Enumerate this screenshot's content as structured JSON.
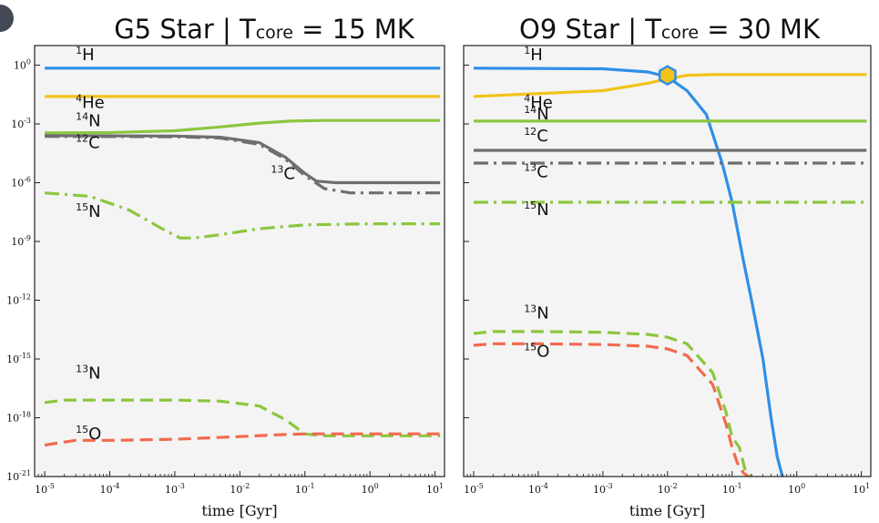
{
  "chart_data": [
    {
      "type": "line",
      "title": {
        "prefix": "G5 Star | T",
        "sub": "core",
        "suffix": " = 15 MK"
      },
      "xlabel": "time [Gyr]",
      "ylabel": "",
      "xscale": "log",
      "yscale": "log",
      "xlim": [
        7e-06,
        14
      ],
      "ylim": [
        1e-21,
        10
      ],
      "xticks": [
        "-5",
        "-4",
        "-3",
        "-2",
        "-1",
        "0",
        "1"
      ],
      "yticks": [
        "0",
        "-3",
        "-6",
        "-9",
        "-12",
        "-15",
        "-18",
        "-21"
      ],
      "grid": false,
      "legend": "none",
      "series": [
        {
          "name": "1H",
          "color": "#2f8ee8",
          "dash": "solid",
          "x": [
            1e-05,
            0.001,
            0.1,
            12
          ],
          "y": [
            0.7,
            0.7,
            0.7,
            0.7
          ]
        },
        {
          "name": "4He",
          "color": "#f2c31a",
          "dash": "solid",
          "x": [
            1e-05,
            0.001,
            0.1,
            12
          ],
          "y": [
            0.025,
            0.025,
            0.025,
            0.025
          ]
        },
        {
          "name": "14N",
          "color": "#8cc63f",
          "dash": "solid",
          "x": [
            1e-05,
            0.0001,
            0.001,
            0.005,
            0.02,
            0.06,
            0.2,
            12
          ],
          "y": [
            0.00035,
            0.00036,
            0.00045,
            0.0007,
            0.0011,
            0.0014,
            0.0015,
            0.0015
          ]
        },
        {
          "name": "12C",
          "color": "#6e6e6e",
          "dash": "solid",
          "x": [
            1e-05,
            0.001,
            0.005,
            0.02,
            0.05,
            0.1,
            0.15,
            0.3,
            12
          ],
          "y": [
            0.00025,
            0.00024,
            0.00021,
            0.00011,
            2e-05,
            3e-06,
            1.2e-06,
            1e-06,
            1e-06
          ]
        },
        {
          "name": "13C",
          "color": "#6e6e6e",
          "dash": "dashdot",
          "x": [
            1e-05,
            0.001,
            0.005,
            0.02,
            0.05,
            0.1,
            0.2,
            0.5,
            12
          ],
          "y": [
            0.00023,
            0.00022,
            0.00019,
            9e-05,
            1.6e-05,
            2.3e-06,
            5e-07,
            3e-07,
            3e-07
          ]
        },
        {
          "name": "15N",
          "color": "#8cc63f",
          "dash": "dashdot",
          "x": [
            1e-05,
            5e-05,
            0.0002,
            0.0006,
            0.0012,
            0.002,
            0.005,
            0.02,
            0.1,
            1,
            12
          ],
          "y": [
            3e-07,
            2e-07,
            4e-08,
            5e-09,
            1.5e-09,
            1.5e-09,
            2.2e-09,
            4.5e-09,
            7e-09,
            8e-09,
            8e-09
          ]
        },
        {
          "name": "13N",
          "color": "#8cc63f",
          "dash": "dash",
          "x": [
            1e-05,
            2e-05,
            0.0001,
            0.001,
            0.005,
            0.02,
            0.05,
            0.1,
            0.2,
            1,
            12
          ],
          "y": [
            6e-18,
            8e-18,
            8e-18,
            8e-18,
            7e-18,
            4e-18,
            8e-19,
            1.5e-19,
            1.2e-19,
            1.2e-19,
            1.2e-19
          ]
        },
        {
          "name": "15O",
          "color": "#f26a4f",
          "dash": "dash",
          "x": [
            1e-05,
            1.5e-05,
            3e-05,
            0.0001,
            0.001,
            0.01,
            0.05,
            0.1,
            1,
            12
          ],
          "y": [
            4e-20,
            5e-20,
            7e-20,
            7e-20,
            8e-20,
            1.1e-19,
            1.4e-19,
            1.5e-19,
            1.5e-19,
            1.5e-19
          ]
        }
      ],
      "labels": [
        {
          "iso": "1",
          "sym": "H",
          "x": 3e-05,
          "y": 1.8
        },
        {
          "iso": "4",
          "sym": "He",
          "x": 3e-05,
          "y": 0.0065
        },
        {
          "iso": "14",
          "sym": "N",
          "x": 3e-05,
          "y": 0.00075
        },
        {
          "iso": "12",
          "sym": "C",
          "x": 3e-05,
          "y": 6e-05
        },
        {
          "iso": "13",
          "sym": "C",
          "x": 0.03,
          "y": 1.5e-06
        },
        {
          "iso": "15",
          "sym": "N",
          "x": 3e-05,
          "y": 1.8e-08
        },
        {
          "iso": "13",
          "sym": "N",
          "x": 3e-05,
          "y": 1e-16
        },
        {
          "iso": "15",
          "sym": "O",
          "x": 3e-05,
          "y": 8e-20
        }
      ]
    },
    {
      "type": "line",
      "title": {
        "prefix": "O9 Star | T",
        "sub": "core",
        "suffix": " = 30 MK"
      },
      "xlabel": "time [Gyr]",
      "ylabel": "",
      "xscale": "log",
      "yscale": "log",
      "xlim": [
        7e-06,
        14
      ],
      "ylim": [
        1e-21,
        10
      ],
      "xticks": [
        "-5",
        "-4",
        "-3",
        "-2",
        "-1",
        "0",
        "1"
      ],
      "grid": false,
      "legend": "none",
      "series": [
        {
          "name": "1H",
          "color": "#2f8ee8",
          "dash": "solid",
          "x": [
            1e-05,
            0.001,
            0.005,
            0.01,
            0.02,
            0.04,
            0.07,
            0.1,
            0.15,
            0.2,
            0.3,
            0.4,
            0.5,
            0.6
          ],
          "y": [
            0.7,
            0.65,
            0.45,
            0.25,
            0.05,
            0.003,
            1e-05,
            1e-07,
            1e-10,
            1e-12,
            1e-15,
            1e-18,
            1e-20,
            1e-21
          ]
        },
        {
          "name": "4He",
          "color": "#f2c31a",
          "dash": "solid",
          "x": [
            1e-05,
            0.001,
            0.005,
            0.01,
            0.02,
            0.05,
            0.1,
            12
          ],
          "y": [
            0.025,
            0.05,
            0.12,
            0.2,
            0.3,
            0.33,
            0.33,
            0.33
          ]
        },
        {
          "name": "14N",
          "color": "#8cc63f",
          "dash": "solid",
          "x": [
            1e-05,
            12
          ],
          "y": [
            0.0014,
            0.0014
          ]
        },
        {
          "name": "12C",
          "color": "#6e6e6e",
          "dash": "solid",
          "x": [
            1e-05,
            12
          ],
          "y": [
            4.5e-05,
            4.5e-05
          ]
        },
        {
          "name": "13C",
          "color": "#6e6e6e",
          "dash": "dashdot",
          "x": [
            1e-05,
            12
          ],
          "y": [
            1e-05,
            1e-05
          ]
        },
        {
          "name": "15N",
          "color": "#8cc63f",
          "dash": "dashdot",
          "x": [
            1e-05,
            12
          ],
          "y": [
            1e-07,
            1e-07
          ]
        },
        {
          "name": "13N",
          "color": "#8cc63f",
          "dash": "dash",
          "x": [
            1e-05,
            2e-05,
            0.0001,
            0.001,
            0.005,
            0.01,
            0.02,
            0.05,
            0.08,
            0.1,
            0.13,
            0.16,
            0.2
          ],
          "y": [
            2e-14,
            2.5e-14,
            2.5e-14,
            2.3e-14,
            1.8e-14,
            1.3e-14,
            6e-15,
            2e-16,
            2e-18,
            1e-19,
            3e-20,
            2e-21,
            1e-21
          ]
        },
        {
          "name": "15O",
          "color": "#f26a4f",
          "dash": "dash",
          "x": [
            1e-05,
            2e-05,
            0.0001,
            0.001,
            0.005,
            0.01,
            0.02,
            0.05,
            0.08,
            0.1,
            0.12,
            0.15,
            0.18
          ],
          "y": [
            5e-15,
            6e-15,
            6e-15,
            5.5e-15,
            4.5e-15,
            3.3e-15,
            1.5e-15,
            5e-17,
            5e-19,
            3e-20,
            5e-21,
            1.5e-21,
            1e-21
          ]
        }
      ],
      "marker": {
        "x": 0.01,
        "y": 0.3,
        "fill": "#f2c31a",
        "stroke": "#2f8ee8"
      },
      "labels": [
        {
          "iso": "1",
          "sym": "H",
          "x": 6e-05,
          "y": 1.8
        },
        {
          "iso": "4",
          "sym": "He",
          "x": 6e-05,
          "y": 0.0065
        },
        {
          "iso": "14",
          "sym": "N",
          "x": 6e-05,
          "y": 0.0017
        },
        {
          "iso": "12",
          "sym": "C",
          "x": 6e-05,
          "y": 0.00013
        },
        {
          "iso": "13",
          "sym": "C",
          "x": 6e-05,
          "y": 1.9e-06
        },
        {
          "iso": "15",
          "sym": "N",
          "x": 6e-05,
          "y": 2.2e-08
        },
        {
          "iso": "13",
          "sym": "N",
          "x": 6e-05,
          "y": 1.2e-13
        },
        {
          "iso": "15",
          "sym": "O",
          "x": 6e-05,
          "y": 1.3e-15
        }
      ]
    }
  ]
}
